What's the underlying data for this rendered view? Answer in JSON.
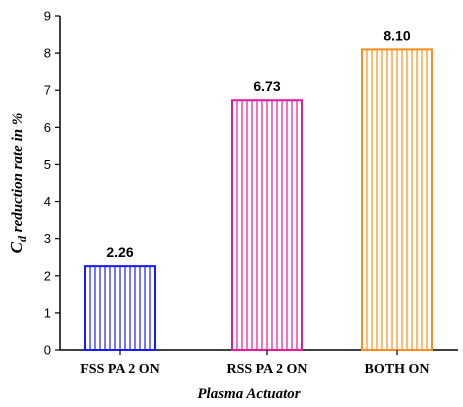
{
  "chart_data": {
    "type": "bar",
    "categories": [
      "FSS PA 2 ON",
      "RSS PA 2 ON",
      "BOTH ON"
    ],
    "values": [
      2.26,
      6.73,
      8.1
    ],
    "value_labels": [
      "2.26",
      "6.73",
      "8.10"
    ],
    "bar_colors": [
      "#1a1aff",
      "#e6199c",
      "#ff8c1a"
    ],
    "bar_fill": "vertical-hatch",
    "xlabel": "Plasma Actuator",
    "ylabel_main": "C",
    "ylabel_sub": "d",
    "ylabel_rest": " reduction rate in %",
    "ylim": [
      0,
      9
    ],
    "yticks": [
      "0",
      "1",
      "2",
      "3",
      "4",
      "5",
      "6",
      "7",
      "8",
      "9"
    ],
    "grid": false
  }
}
